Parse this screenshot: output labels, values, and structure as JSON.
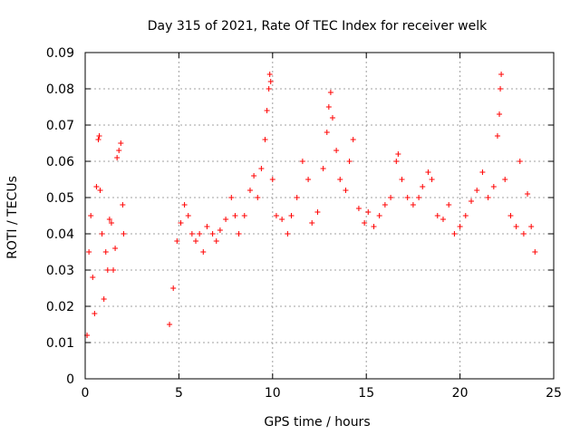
{
  "chart_data": {
    "type": "scatter",
    "title": "Day 315 of 2021, Rate Of TEC Index for receiver welk",
    "xlabel": "GPS time / hours",
    "ylabel": "ROTI / TECUs",
    "xlim": [
      0,
      25
    ],
    "ylim": [
      0,
      0.09
    ],
    "xticks": [
      0,
      5,
      10,
      15,
      20,
      25
    ],
    "yticks": [
      0,
      0.01,
      0.02,
      0.03,
      0.04,
      0.05,
      0.06,
      0.07,
      0.08,
      0.09
    ],
    "xtick_labels": [
      "0",
      "5",
      "10",
      "15",
      "20",
      "25"
    ],
    "ytick_labels": [
      "0",
      "0.01",
      "0.02",
      "0.03",
      "0.04",
      "0.05",
      "0.06",
      "0.07",
      "0.08",
      "0.09"
    ],
    "grid": true,
    "marker": "plus",
    "color": "#ff0000",
    "series": [
      {
        "points": [
          [
            0.1,
            0.012
          ],
          [
            0.2,
            0.035
          ],
          [
            0.3,
            0.045
          ],
          [
            0.4,
            0.028
          ],
          [
            0.5,
            0.018
          ],
          [
            0.6,
            0.053
          ],
          [
            0.7,
            0.066
          ],
          [
            0.75,
            0.067
          ],
          [
            0.8,
            0.052
          ],
          [
            0.9,
            0.04
          ],
          [
            1.0,
            0.022
          ],
          [
            1.1,
            0.035
          ],
          [
            1.2,
            0.03
          ],
          [
            1.3,
            0.044
          ],
          [
            1.4,
            0.043
          ],
          [
            1.5,
            0.03
          ],
          [
            1.6,
            0.036
          ],
          [
            1.7,
            0.061
          ],
          [
            1.8,
            0.063
          ],
          [
            1.9,
            0.065
          ],
          [
            2.0,
            0.048
          ],
          [
            2.05,
            0.04
          ],
          [
            4.5,
            0.015
          ],
          [
            4.7,
            0.025
          ],
          [
            4.9,
            0.038
          ],
          [
            5.1,
            0.043
          ],
          [
            5.3,
            0.048
          ],
          [
            5.5,
            0.045
          ],
          [
            5.7,
            0.04
          ],
          [
            5.9,
            0.038
          ],
          [
            6.1,
            0.04
          ],
          [
            6.3,
            0.035
          ],
          [
            6.5,
            0.042
          ],
          [
            6.8,
            0.04
          ],
          [
            7.0,
            0.038
          ],
          [
            7.2,
            0.041
          ],
          [
            7.5,
            0.044
          ],
          [
            7.8,
            0.05
          ],
          [
            8.0,
            0.045
          ],
          [
            8.2,
            0.04
          ],
          [
            8.5,
            0.045
          ],
          [
            8.8,
            0.052
          ],
          [
            9.0,
            0.056
          ],
          [
            9.2,
            0.05
          ],
          [
            9.4,
            0.058
          ],
          [
            9.6,
            0.066
          ],
          [
            9.7,
            0.074
          ],
          [
            9.8,
            0.08
          ],
          [
            9.85,
            0.084
          ],
          [
            9.9,
            0.082
          ],
          [
            10.0,
            0.055
          ],
          [
            10.2,
            0.045
          ],
          [
            10.5,
            0.044
          ],
          [
            10.8,
            0.04
          ],
          [
            11.0,
            0.045
          ],
          [
            11.3,
            0.05
          ],
          [
            11.6,
            0.06
          ],
          [
            11.9,
            0.055
          ],
          [
            12.1,
            0.043
          ],
          [
            12.4,
            0.046
          ],
          [
            12.7,
            0.058
          ],
          [
            12.9,
            0.068
          ],
          [
            13.0,
            0.075
          ],
          [
            13.1,
            0.079
          ],
          [
            13.2,
            0.072
          ],
          [
            13.4,
            0.063
          ],
          [
            13.6,
            0.055
          ],
          [
            13.9,
            0.052
          ],
          [
            14.1,
            0.06
          ],
          [
            14.3,
            0.066
          ],
          [
            14.6,
            0.047
          ],
          [
            14.9,
            0.043
          ],
          [
            15.1,
            0.046
          ],
          [
            15.4,
            0.042
          ],
          [
            15.7,
            0.045
          ],
          [
            16.0,
            0.048
          ],
          [
            16.3,
            0.05
          ],
          [
            16.6,
            0.06
          ],
          [
            16.7,
            0.062
          ],
          [
            16.9,
            0.055
          ],
          [
            17.2,
            0.05
          ],
          [
            17.5,
            0.048
          ],
          [
            17.8,
            0.05
          ],
          [
            18.0,
            0.053
          ],
          [
            18.3,
            0.057
          ],
          [
            18.5,
            0.055
          ],
          [
            18.8,
            0.045
          ],
          [
            19.1,
            0.044
          ],
          [
            19.4,
            0.048
          ],
          [
            19.7,
            0.04
          ],
          [
            20.0,
            0.042
          ],
          [
            20.3,
            0.045
          ],
          [
            20.6,
            0.049
          ],
          [
            20.9,
            0.052
          ],
          [
            21.2,
            0.057
          ],
          [
            21.5,
            0.05
          ],
          [
            21.8,
            0.053
          ],
          [
            22.0,
            0.067
          ],
          [
            22.1,
            0.073
          ],
          [
            22.15,
            0.08
          ],
          [
            22.2,
            0.084
          ],
          [
            22.4,
            0.055
          ],
          [
            22.7,
            0.045
          ],
          [
            23.0,
            0.042
          ],
          [
            23.2,
            0.06
          ],
          [
            23.4,
            0.04
          ],
          [
            23.6,
            0.051
          ],
          [
            23.8,
            0.042
          ],
          [
            24.0,
            0.035
          ]
        ]
      }
    ]
  }
}
